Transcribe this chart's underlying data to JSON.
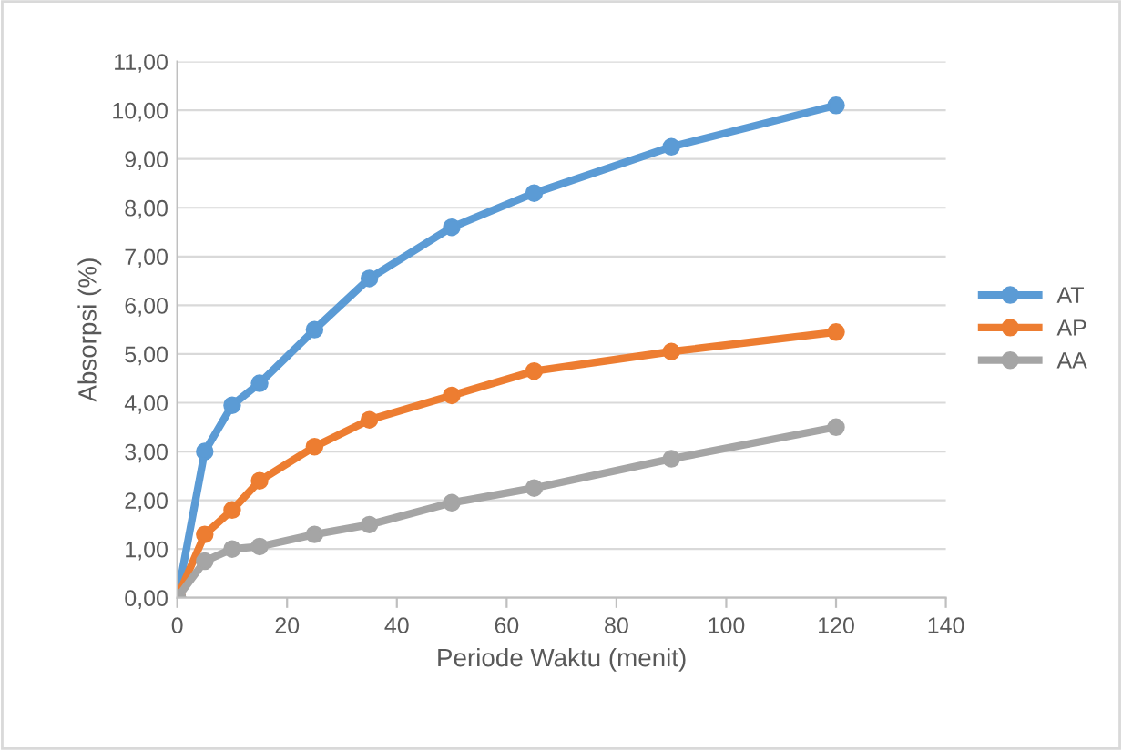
{
  "chart_data": {
    "type": "line",
    "xlabel": "Periode Waktu (menit)",
    "ylabel": "Absorpsi (%)",
    "x": [
      0,
      5,
      10,
      15,
      25,
      35,
      50,
      65,
      90,
      120
    ],
    "series": [
      {
        "name": "AT",
        "color": "#5b9bd5",
        "values": [
          0,
          3.0,
          3.95,
          4.4,
          5.5,
          6.55,
          7.6,
          8.3,
          9.25,
          10.1
        ]
      },
      {
        "name": "AP",
        "color": "#ed7d31",
        "values": [
          0,
          1.3,
          1.8,
          2.4,
          3.1,
          3.65,
          4.15,
          4.65,
          5.05,
          5.45
        ]
      },
      {
        "name": "AA",
        "color": "#a5a5a5",
        "values": [
          0,
          0.75,
          1.0,
          1.05,
          1.3,
          1.5,
          1.95,
          2.25,
          2.85,
          3.5
        ]
      }
    ],
    "xlim": [
      0,
      140
    ],
    "xticks": [
      0,
      20,
      40,
      60,
      80,
      100,
      120,
      140
    ],
    "ylim": [
      0,
      11
    ],
    "yticks": [
      {
        "value": 0,
        "label": "0,00"
      },
      {
        "value": 1,
        "label": "1,00"
      },
      {
        "value": 2,
        "label": "2,00"
      },
      {
        "value": 3,
        "label": "3,00"
      },
      {
        "value": 4,
        "label": "4,00"
      },
      {
        "value": 5,
        "label": "5,00"
      },
      {
        "value": 6,
        "label": "6,00"
      },
      {
        "value": 7,
        "label": "7,00"
      },
      {
        "value": 8,
        "label": "8,00"
      },
      {
        "value": 9,
        "label": "9,00"
      },
      {
        "value": 10,
        "label": "10,00"
      },
      {
        "value": 11,
        "label": "11,00"
      }
    ],
    "grid": "y",
    "legend": "right",
    "marker": "circle",
    "line_style": "solid"
  }
}
